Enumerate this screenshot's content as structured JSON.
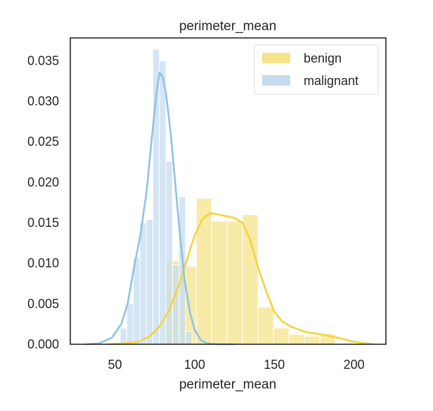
{
  "chart_data": {
    "type": "histogram-kde",
    "title": "perimeter_mean",
    "xlabel": "perimeter_mean",
    "ylabel": "",
    "xlim": [
      22,
      220
    ],
    "ylim": [
      0,
      0.0378
    ],
    "xticks": [
      50,
      100,
      150,
      200
    ],
    "xtick_labels": [
      "50",
      "100",
      "150",
      "200"
    ],
    "yticks": [
      0,
      0.005,
      0.01,
      0.015,
      0.02,
      0.025,
      0.03,
      0.035
    ],
    "ytick_labels": [
      "0.000",
      "0.005",
      "0.010",
      "0.015",
      "0.020",
      "0.025",
      "0.030",
      "0.035"
    ],
    "grid": false,
    "legend_position": "top-right",
    "series": [
      {
        "name": "benign",
        "hist_color": "#f6e389",
        "line_color": "#f5d33b",
        "bin_edges": [
          81.5,
          91.3,
          101.0,
          110.7,
          120.4,
          130.1,
          139.8,
          149.5,
          159.2,
          168.9,
          178.6,
          188.3
        ],
        "densities": [
          0.0103,
          0.0096,
          0.018,
          0.0152,
          0.0152,
          0.016,
          0.0046,
          0.002,
          0.0012,
          0.001,
          0.0013
        ],
        "kde_x": [
          45,
          55,
          65,
          72,
          78,
          84,
          90,
          95,
          100,
          105,
          110,
          115,
          120,
          125,
          130,
          135,
          140,
          145,
          150,
          155,
          160,
          170,
          180,
          190,
          200,
          212
        ],
        "kde_y": [
          0.0,
          0.0001,
          0.0003,
          0.001,
          0.0022,
          0.0042,
          0.0072,
          0.0103,
          0.0134,
          0.0155,
          0.0162,
          0.016,
          0.0158,
          0.0156,
          0.015,
          0.0128,
          0.0093,
          0.0065,
          0.004,
          0.0028,
          0.0022,
          0.0015,
          0.0012,
          0.0008,
          0.0003,
          0.0
        ]
      },
      {
        "name": "malignant",
        "hist_color": "#c5dcf0",
        "line_color": "#8fc2e7",
        "bin_edges": [
          53.3,
          57.4,
          61.5,
          65.6,
          69.7,
          73.8,
          77.9,
          82.0,
          86.1,
          90.2,
          94.3,
          98.4
        ],
        "densities": [
          0.002,
          0.005,
          0.0107,
          0.015,
          0.0154,
          0.0364,
          0.035,
          0.0226,
          0.0098,
          0.0182,
          0.0016
        ],
        "kde_x": [
          32,
          40,
          48,
          54,
          58,
          62,
          66,
          70,
          73,
          76,
          78,
          80,
          82,
          85,
          88,
          91,
          94,
          97,
          100,
          104,
          108,
          115,
          125
        ],
        "kde_y": [
          0.0,
          0.0001,
          0.0008,
          0.0025,
          0.005,
          0.0095,
          0.0135,
          0.019,
          0.0252,
          0.031,
          0.0335,
          0.033,
          0.031,
          0.026,
          0.0195,
          0.013,
          0.0075,
          0.004,
          0.0018,
          0.0005,
          0.0001,
          0.0,
          0.0
        ]
      }
    ]
  }
}
